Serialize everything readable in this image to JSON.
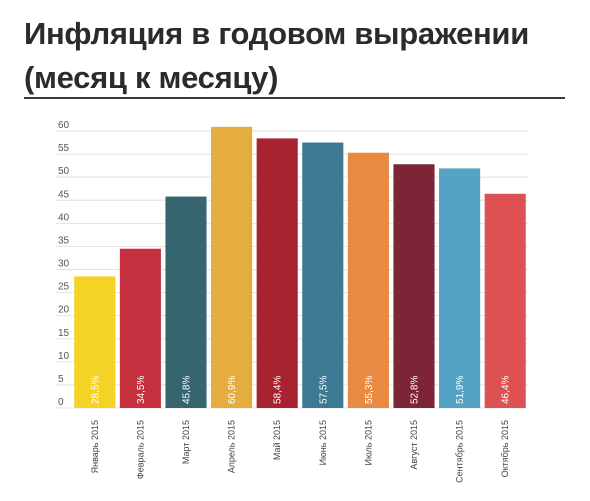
{
  "header": {
    "title_line1": "Инфляция в годовом выражении",
    "title_line2": "(месяц к месяцу)"
  },
  "chart_data": {
    "type": "bar",
    "categories": [
      "Январь 2015",
      "Февраль 2015",
      "Март 2015",
      "Апрель 2015",
      "Май 2015",
      "Июнь 2015",
      "Июль 2015",
      "Август 2015",
      "Сентябрь 2015",
      "Октябрь 2015"
    ],
    "values": [
      28.5,
      34.5,
      45.8,
      60.9,
      58.4,
      57.5,
      55.3,
      52.8,
      51.9,
      46.4
    ],
    "data_labels": [
      "28,5%",
      "34,5%",
      "45,8%",
      "60,9%",
      "58,4%",
      "57,5%",
      "55,3%",
      "52,8%",
      "51,9%",
      "46,4%"
    ],
    "colors": [
      "#f5d226",
      "#c4303e",
      "#36656f",
      "#e5ad3f",
      "#a82331",
      "#3e7994",
      "#e98a43",
      "#7d2536",
      "#55a3c4",
      "#de5152"
    ],
    "yticks": [
      0,
      5,
      10,
      15,
      20,
      25,
      30,
      35,
      40,
      45,
      50,
      55,
      60
    ],
    "ylim": [
      0,
      60
    ],
    "grid": true,
    "legend": "none"
  }
}
